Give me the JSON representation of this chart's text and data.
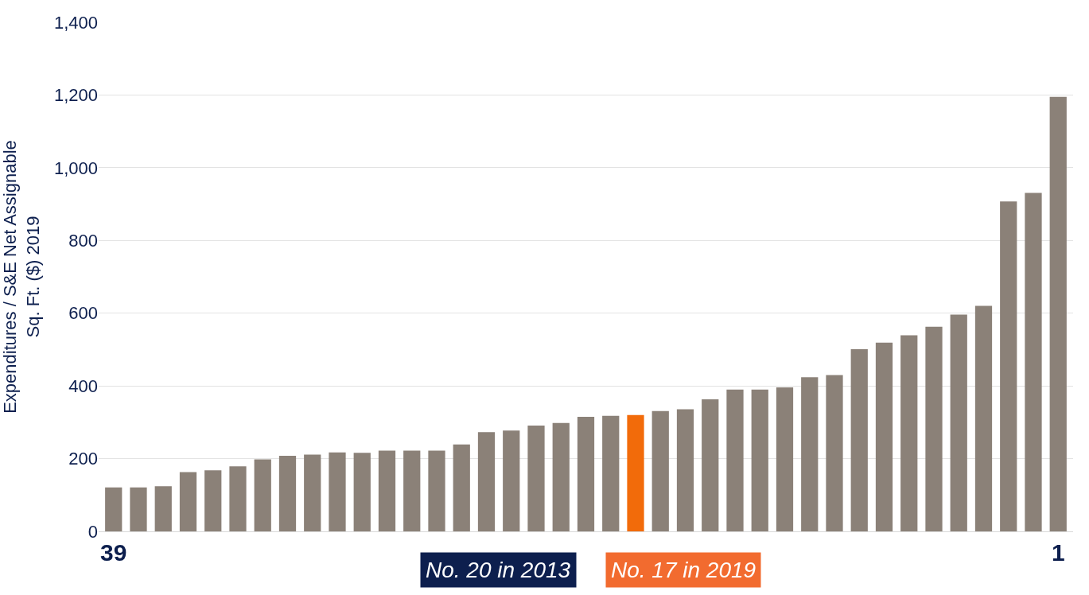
{
  "chart_data": {
    "type": "bar",
    "ylabel": "Expenditures / S&E Net Assignable\nSq. Ft. ($) 2019",
    "categories": [
      "39",
      null,
      null,
      null,
      null,
      null,
      null,
      null,
      null,
      null,
      null,
      null,
      null,
      null,
      null,
      null,
      null,
      null,
      null,
      null,
      null,
      null,
      null,
      null,
      null,
      null,
      null,
      null,
      null,
      null,
      null,
      null,
      null,
      null,
      null,
      null,
      null,
      null,
      "1"
    ],
    "values": [
      121,
      121,
      124,
      163,
      168,
      179,
      198,
      208,
      211,
      217,
      216,
      222,
      222,
      222,
      239,
      273,
      277,
      291,
      298,
      315,
      318,
      320,
      331,
      336,
      363,
      390,
      390,
      396,
      424,
      430,
      501,
      519,
      539,
      563,
      596,
      620,
      907,
      931,
      1195
    ],
    "colors": [
      "#8b8178",
      "#8b8178",
      "#8b8178",
      "#8b8178",
      "#8b8178",
      "#8b8178",
      "#8b8178",
      "#8b8178",
      "#8b8178",
      "#8b8178",
      "#8b8178",
      "#8b8178",
      "#8b8178",
      "#8b8178",
      "#8b8178",
      "#8b8178",
      "#8b8178",
      "#8b8178",
      "#8b8178",
      "#8b8178",
      "#8b8178",
      "#f26b0a",
      "#8b8178",
      "#8b8178",
      "#8b8178",
      "#8b8178",
      "#8b8178",
      "#8b8178",
      "#8b8178",
      "#8b8178",
      "#8b8178",
      "#8b8178",
      "#8b8178",
      "#8b8178",
      "#8b8178",
      "#8b8178",
      "#8b8178",
      "#8b8178",
      "#8b8178"
    ],
    "ylim": [
      0,
      1400
    ],
    "yticks": [
      0,
      200,
      400,
      600,
      800,
      {
        "value": 1000,
        "label": "1,000"
      },
      {
        "value": 1200,
        "label": "1,200"
      },
      {
        "value": 1400,
        "label": "1,400"
      }
    ],
    "grid": "y",
    "legend": false,
    "annotations": [
      "No. 20 in 2013",
      "No. 17 in 2019"
    ]
  }
}
